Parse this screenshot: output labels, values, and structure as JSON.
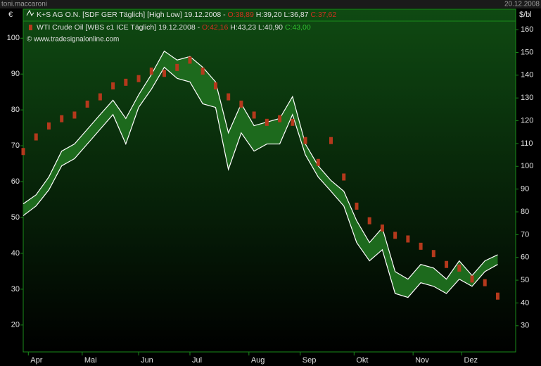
{
  "header": {
    "user": "toni.maccaroni",
    "date": "20.12.2008",
    "copyright": "© www.tradesignalonline.com"
  },
  "chart_data": {
    "type": "financial",
    "y_label": "€",
    "y2_label": "$/bl",
    "x": [
      0,
      5,
      10,
      15,
      20,
      25,
      30,
      35,
      40,
      45,
      50,
      55,
      60,
      65,
      70,
      75,
      80,
      85,
      90,
      95,
      100,
      105,
      110,
      115,
      120,
      125,
      130,
      135,
      140,
      145,
      150,
      155,
      160,
      165,
      170,
      175,
      180,
      185
    ],
    "xlim": [
      0,
      192
    ],
    "xticks": [
      {
        "value": 2,
        "label": "Apr"
      },
      {
        "value": 23,
        "label": "Mai"
      },
      {
        "value": 45,
        "label": "Jun"
      },
      {
        "value": 65,
        "label": "Jul"
      },
      {
        "value": 88,
        "label": "Aug"
      },
      {
        "value": 108,
        "label": "Sep"
      },
      {
        "value": 129,
        "label": "Okt"
      },
      {
        "value": 152,
        "label": "Nov"
      },
      {
        "value": 171,
        "label": "Dez"
      }
    ],
    "ylim": [
      12.5,
      108.1
    ],
    "yticks": [
      20,
      30,
      40,
      50,
      60,
      70,
      80,
      90,
      100
    ],
    "y2lim": [
      18.5,
      169
    ],
    "y2ticks": [
      30,
      40,
      50,
      60,
      70,
      80,
      90,
      100,
      110,
      120,
      130,
      140,
      150,
      160
    ],
    "series": [
      {
        "name": "K+S AG O.N. [SDF GER  Täglich] [High Low]",
        "color": "#ffffff",
        "fill": "#1d6a1d",
        "quote": {
          "date": "19.12.2008 -",
          "open": "O:38,89",
          "hl": "H:39,20 L:36,87",
          "close": "C:37,62"
        },
        "high": [
          53.8,
          56.3,
          61.3,
          68.5,
          70.5,
          74.6,
          78.7,
          82.7,
          77.6,
          84.2,
          89.9,
          96.4,
          93.9,
          94.9,
          91.9,
          87.8,
          73.6,
          81.7,
          75.6,
          76.6,
          77.6,
          83.7,
          70.5,
          64.4,
          60.3,
          57.3,
          49.1,
          43.0,
          47.1,
          34.9,
          32.8,
          36.9,
          35.9,
          32.8,
          37.9,
          33.8,
          37.9,
          39.6
        ],
        "low": [
          50.5,
          53.2,
          57.7,
          64.4,
          66.4,
          70.5,
          74.6,
          78.7,
          70.5,
          80.7,
          85.8,
          91.9,
          88.8,
          87.8,
          81.7,
          80.7,
          63.4,
          73.6,
          68.5,
          70.5,
          70.5,
          78.7,
          67.5,
          61.3,
          57.3,
          53.2,
          43.0,
          37.9,
          41.0,
          28.8,
          27.7,
          31.8,
          30.8,
          28.8,
          32.8,
          30.8,
          34.9,
          36.9
        ]
      },
      {
        "name": "WTI Crude Oil [WBS c1 ICE  Täglich]",
        "color": "#b5391c",
        "axis": "y2",
        "quote": {
          "date": "19.12.2008 -",
          "open": "O:42,16",
          "hl": "H:43,23 L:40,90",
          "close": "C:43,00"
        },
        "values": [
          106.5,
          112.9,
          117.7,
          120.9,
          122.5,
          127.3,
          130.5,
          135.3,
          136.9,
          138.5,
          141.8,
          140.8,
          143.4,
          146.6,
          141.8,
          135.3,
          130.5,
          127.3,
          122.5,
          119.3,
          120.9,
          119.3,
          111.3,
          101.7,
          111.3,
          95.3,
          82.5,
          76.1,
          72.9,
          69.7,
          68.1,
          64.9,
          61.7,
          56.9,
          55.3,
          50.5,
          48.9,
          43.0
        ]
      }
    ]
  }
}
